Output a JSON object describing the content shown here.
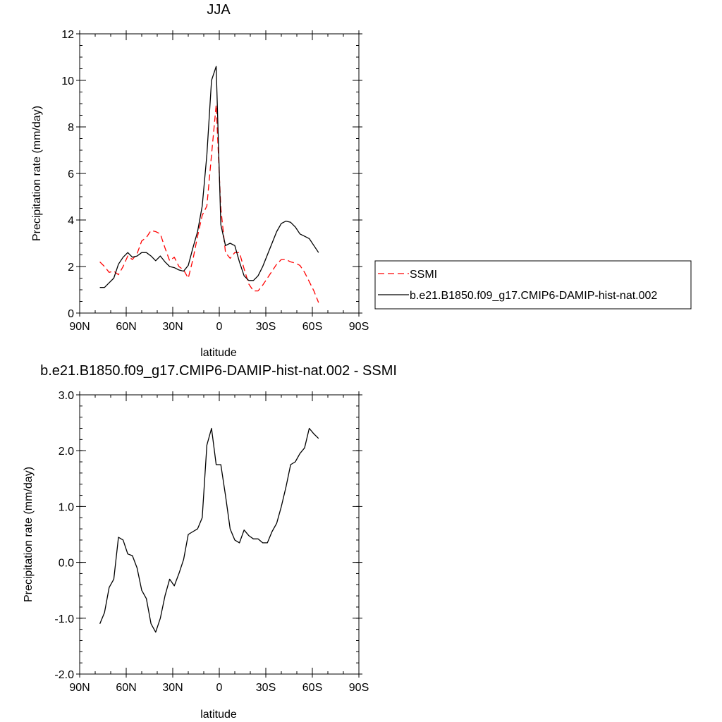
{
  "colors": {
    "ssmi": "#ff0000",
    "model": "#000000",
    "axis": "#000000",
    "legend_border": "#000000"
  },
  "chart_data": [
    {
      "type": "line",
      "title": "JJA",
      "xlabel": "latitude",
      "ylabel": "Precipitation rate (mm/day)",
      "xlim": [
        90,
        -90
      ],
      "ylim": [
        0,
        12
      ],
      "x_ticks": [
        90,
        60,
        30,
        0,
        -30,
        -60,
        -90
      ],
      "x_tick_labels": [
        "90N",
        "60N",
        "30N",
        "0",
        "30S",
        "60S",
        "90S"
      ],
      "y_ticks": [
        0,
        2,
        4,
        6,
        8,
        10,
        12
      ],
      "y_tick_labels": [
        "0",
        "2",
        "4",
        "6",
        "8",
        "10",
        "12"
      ],
      "legend_position": "right",
      "series": [
        {
          "name": "SSMI",
          "style": "dashed",
          "color": "#ff0000",
          "x": [
            77,
            74,
            71,
            68,
            65,
            62,
            59,
            56,
            53,
            50,
            47,
            44,
            41,
            38,
            35,
            32,
            29,
            26,
            23,
            20,
            17,
            14,
            11,
            8,
            5,
            2,
            -1,
            -4,
            -7,
            -10,
            -13,
            -16,
            -19,
            -22,
            -25,
            -28,
            -31,
            -34,
            -37,
            -40,
            -43,
            -46,
            -49,
            -52,
            -55,
            -58,
            -61,
            -64
          ],
          "y": [
            2.2,
            2.0,
            1.75,
            1.8,
            1.65,
            2.0,
            2.45,
            2.3,
            2.55,
            3.1,
            3.25,
            3.55,
            3.5,
            3.4,
            2.8,
            2.25,
            2.4,
            2.0,
            1.85,
            1.5,
            2.3,
            3.3,
            4.2,
            4.6,
            6.8,
            8.95,
            4.5,
            2.6,
            2.35,
            2.6,
            2.6,
            1.9,
            1.25,
            0.95,
            0.95,
            1.2,
            1.5,
            1.8,
            2.1,
            2.3,
            2.3,
            2.2,
            2.15,
            2.05,
            1.75,
            1.35,
            0.95,
            0.45
          ]
        },
        {
          "name": "b.e21.B1850.f09_g17.CMIP6-DAMIP-hist-nat.002",
          "style": "solid",
          "color": "#000000",
          "x": [
            77,
            74,
            71,
            68,
            65,
            62,
            59,
            56,
            53,
            50,
            47,
            44,
            41,
            38,
            35,
            32,
            29,
            26,
            23,
            20,
            17,
            14,
            11,
            8,
            5,
            2,
            -1,
            -4,
            -7,
            -10,
            -13,
            -16,
            -19,
            -22,
            -25,
            -28,
            -31,
            -34,
            -37,
            -40,
            -43,
            -46,
            -49,
            -52,
            -55,
            -58,
            -61,
            -64
          ],
          "y": [
            1.1,
            1.1,
            1.3,
            1.5,
            2.1,
            2.4,
            2.6,
            2.4,
            2.45,
            2.6,
            2.6,
            2.45,
            2.25,
            2.45,
            2.2,
            2.0,
            1.95,
            1.85,
            1.8,
            2.05,
            2.8,
            3.5,
            4.6,
            6.8,
            10.0,
            10.6,
            3.8,
            2.9,
            3.0,
            2.9,
            2.2,
            1.6,
            1.4,
            1.4,
            1.6,
            2.0,
            2.5,
            3.0,
            3.5,
            3.85,
            3.95,
            3.9,
            3.7,
            3.4,
            3.3,
            3.2,
            2.9,
            2.6
          ]
        }
      ]
    },
    {
      "type": "line",
      "title": "b.e21.B1850.f09_g17.CMIP6-DAMIP-hist-nat.002 - SSMI",
      "xlabel": "latitude",
      "ylabel": "Precipitation rate (mm/day)",
      "xlim": [
        90,
        -90
      ],
      "ylim": [
        -2,
        3
      ],
      "x_ticks": [
        90,
        60,
        30,
        0,
        -30,
        -60,
        -90
      ],
      "x_tick_labels": [
        "90N",
        "60N",
        "30N",
        "0",
        "30S",
        "60S",
        "90S"
      ],
      "y_ticks": [
        -2,
        -1,
        0,
        1,
        2,
        3
      ],
      "y_tick_labels": [
        "-2.0",
        "-1.0",
        "0.0",
        "1.0",
        "2.0",
        "3.0"
      ],
      "series": [
        {
          "style": "solid",
          "color": "#000000",
          "x": [
            77,
            74,
            71,
            68,
            65,
            62,
            59,
            56,
            53,
            50,
            47,
            44,
            41,
            38,
            35,
            32,
            29,
            26,
            23,
            20,
            17,
            14,
            11,
            8,
            5,
            2,
            -1,
            -4,
            -7,
            -10,
            -13,
            -16,
            -19,
            -22,
            -25,
            -28,
            -31,
            -34,
            -37,
            -40,
            -43,
            -46,
            -49,
            -52,
            -55,
            -58,
            -61,
            -64
          ],
          "y": [
            -1.1,
            -0.9,
            -0.45,
            -0.3,
            0.45,
            0.4,
            0.15,
            0.12,
            -0.1,
            -0.5,
            -0.65,
            -1.1,
            -1.25,
            -1.0,
            -0.6,
            -0.3,
            -0.42,
            -0.2,
            0.05,
            0.5,
            0.55,
            0.6,
            0.8,
            2.1,
            2.4,
            1.75,
            1.75,
            1.2,
            0.6,
            0.4,
            0.35,
            0.58,
            0.48,
            0.42,
            0.42,
            0.35,
            0.35,
            0.55,
            0.7,
            1.0,
            1.35,
            1.75,
            1.8,
            1.95,
            2.05,
            2.4,
            2.3,
            2.22
          ]
        }
      ]
    }
  ]
}
